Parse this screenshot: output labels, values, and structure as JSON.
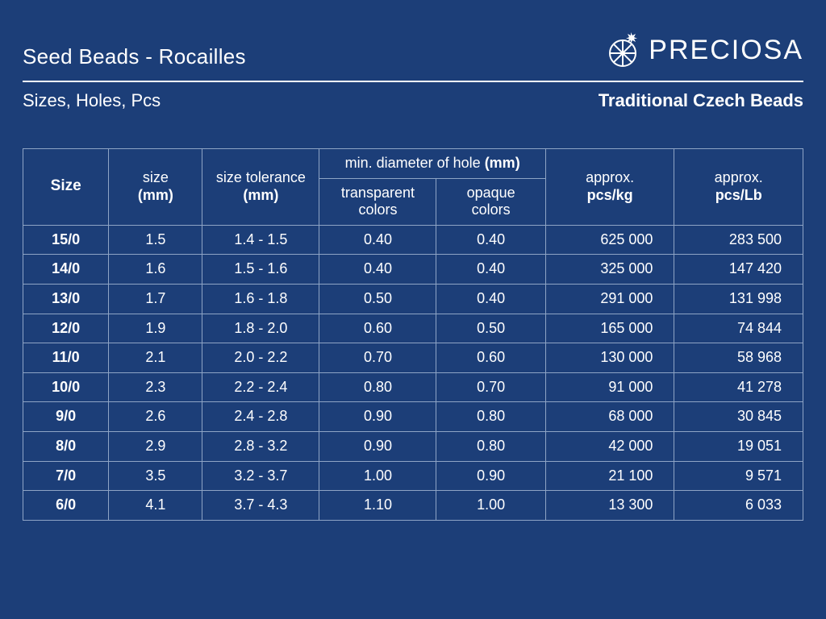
{
  "colors": {
    "background": "#1c3e78",
    "text": "#ffffff",
    "rule": "#ffffff",
    "table_border": "#8ea4c5"
  },
  "header": {
    "title": "Seed Beads - Rocailles",
    "brand": "PRECIOSA",
    "subtitle": "Sizes, Holes, Pcs",
    "tagline": "Traditional Czech Beads"
  },
  "table": {
    "columns": {
      "size": {
        "label": "Size",
        "bold": true
      },
      "size_mm": {
        "label": "size",
        "unit": "(mm)",
        "unit_bold": true
      },
      "tolerance": {
        "label": "size tolerance",
        "unit": "(mm)",
        "unit_bold": true
      },
      "hole_group": {
        "label_pre": "min. diameter of hole ",
        "label_unit": "(mm)"
      },
      "transparent": {
        "label": "transparent",
        "unit": "colors"
      },
      "opaque": {
        "label": "opaque",
        "unit": "colors"
      },
      "pcs_kg": {
        "label": "approx.",
        "unit": "pcs/kg",
        "unit_bold": true
      },
      "pcs_lb": {
        "label": "approx.",
        "unit": "pcs/Lb",
        "unit_bold": true
      }
    },
    "rows": [
      {
        "size": "15/0",
        "mm": "1.5",
        "tol": "1.4 - 1.5",
        "tc": "0.40",
        "oc": "0.40",
        "kg": "625 000",
        "lb": "283 500"
      },
      {
        "size": "14/0",
        "mm": "1.6",
        "tol": "1.5 - 1.6",
        "tc": "0.40",
        "oc": "0.40",
        "kg": "325 000",
        "lb": "147 420"
      },
      {
        "size": "13/0",
        "mm": "1.7",
        "tol": "1.6 - 1.8",
        "tc": "0.50",
        "oc": "0.40",
        "kg": "291 000",
        "lb": "131 998"
      },
      {
        "size": "12/0",
        "mm": "1.9",
        "tol": "1.8 - 2.0",
        "tc": "0.60",
        "oc": "0.50",
        "kg": "165 000",
        "lb": "74 844"
      },
      {
        "size": "11/0",
        "mm": "2.1",
        "tol": "2.0 - 2.2",
        "tc": "0.70",
        "oc": "0.60",
        "kg": "130 000",
        "lb": "58 968"
      },
      {
        "size": "10/0",
        "mm": "2.3",
        "tol": "2.2 - 2.4",
        "tc": "0.80",
        "oc": "0.70",
        "kg": "91 000",
        "lb": "41 278"
      },
      {
        "size": "9/0",
        "mm": "2.6",
        "tol": "2.4 - 2.8",
        "tc": "0.90",
        "oc": "0.80",
        "kg": "68 000",
        "lb": "30 845"
      },
      {
        "size": "8/0",
        "mm": "2.9",
        "tol": "2.8 - 3.2",
        "tc": "0.90",
        "oc": "0.80",
        "kg": "42 000",
        "lb": "19 051"
      },
      {
        "size": "7/0",
        "mm": "3.5",
        "tol": "3.2 - 3.7",
        "tc": "1.00",
        "oc": "0.90",
        "kg": "21 100",
        "lb": "9 571"
      },
      {
        "size": "6/0",
        "mm": "4.1",
        "tol": "3.7 - 4.3",
        "tc": "1.10",
        "oc": "1.00",
        "kg": "13 300",
        "lb": "6 033"
      }
    ]
  }
}
